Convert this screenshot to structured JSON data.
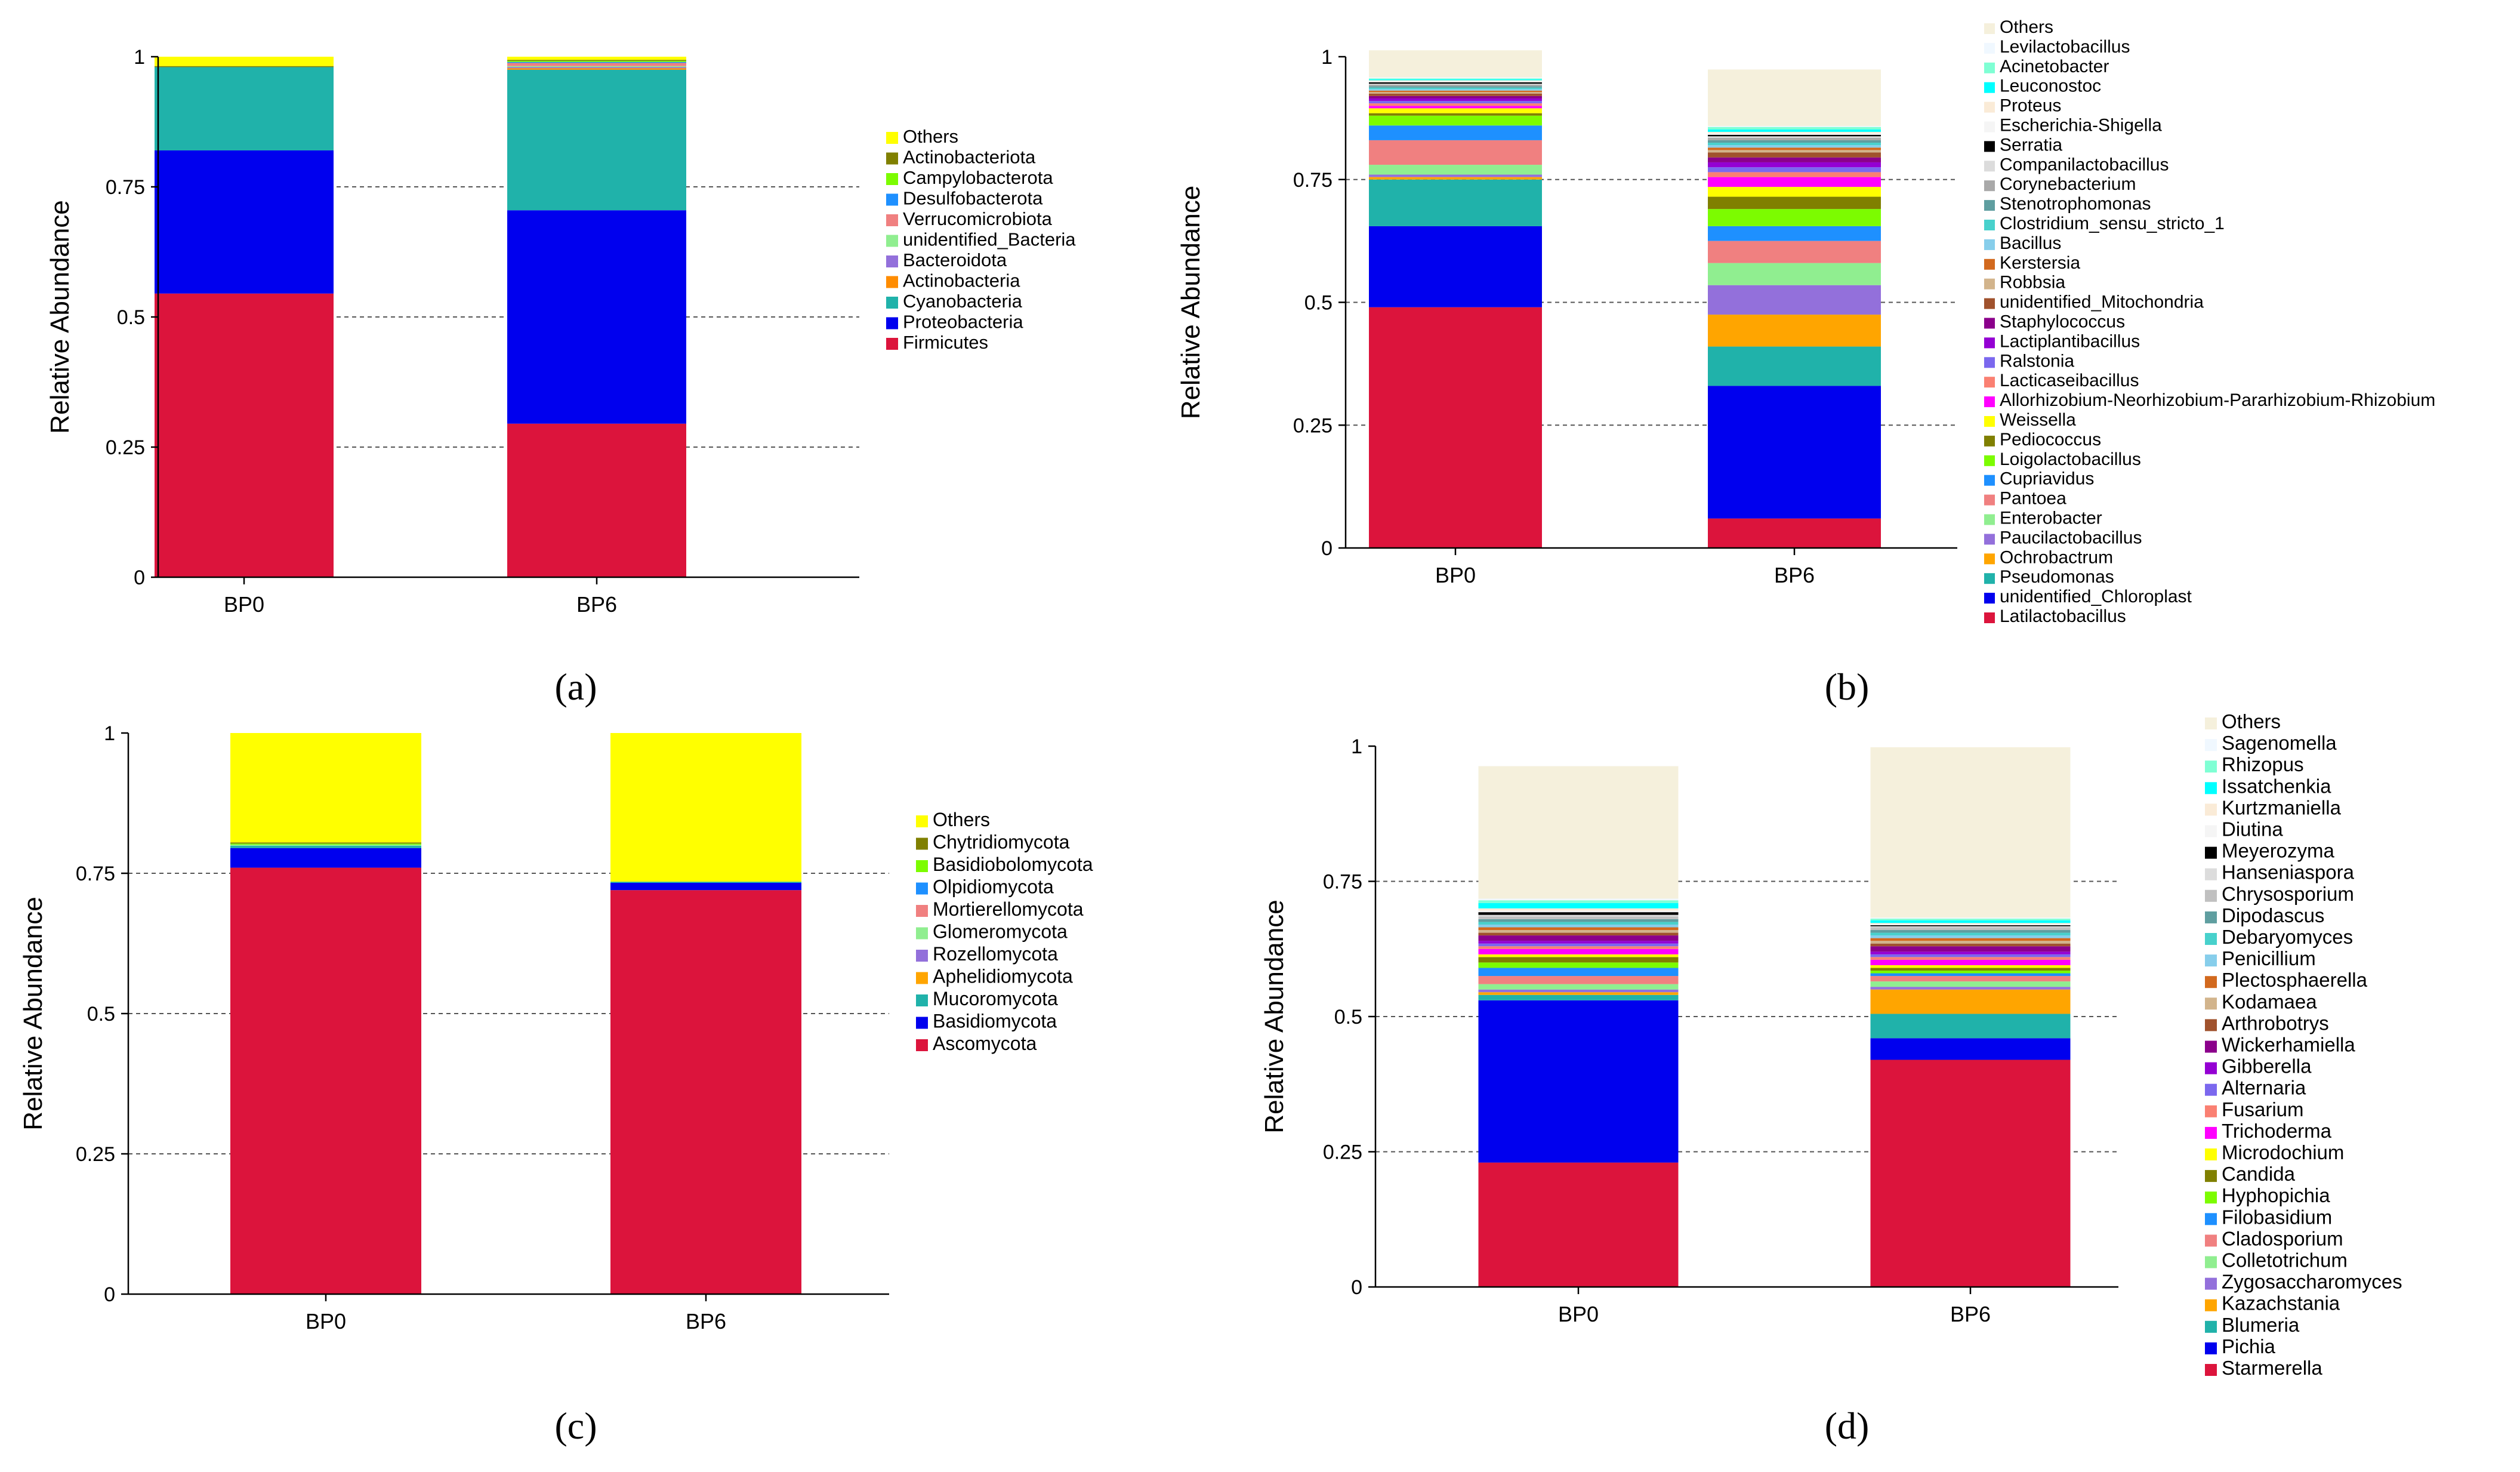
{
  "chart_data": [
    {
      "type": "bar",
      "stacked": true,
      "panel_label": "(a)",
      "categories": [
        "BP0",
        "BP6"
      ],
      "ylabel": "Relative Abundance",
      "ylim": [
        0,
        1
      ],
      "yticks": [
        "0",
        "0.25",
        "0.5",
        "0.75",
        "1"
      ],
      "legend_placement": "right",
      "series": [
        {
          "name": "Firmicutes",
          "color": "#dc143c",
          "values": [
            0.545,
            0.295
          ]
        },
        {
          "name": "Proteobacteria",
          "color": "#0000ee",
          "values": [
            0.275,
            0.41
          ]
        },
        {
          "name": "Cyanobacteria",
          "color": "#20b2aa",
          "values": [
            0.16,
            0.27
          ]
        },
        {
          "name": "Actinobacteria",
          "color": "#ff8c00",
          "values": [
            0,
            0.003
          ]
        },
        {
          "name": "Bacteroidota",
          "color": "#9370db",
          "values": [
            0,
            0.002
          ]
        },
        {
          "name": "unidentified_Bacteria",
          "color": "#90ee90",
          "values": [
            0,
            0.002
          ]
        },
        {
          "name": "Verrucomicrobiota",
          "color": "#f08080",
          "values": [
            0,
            0.006
          ]
        },
        {
          "name": "Desulfobacterota",
          "color": "#1e90ff",
          "values": [
            0,
            0.002
          ]
        },
        {
          "name": "Campylobacterota",
          "color": "#7cfc00",
          "values": [
            0,
            0.002
          ]
        },
        {
          "name": "Actinobacteriota",
          "color": "#808000",
          "values": [
            0.002,
            0.002
          ]
        },
        {
          "name": "Others",
          "color": "#ffff00",
          "values": [
            0.018,
            0.006
          ]
        }
      ]
    },
    {
      "type": "bar",
      "stacked": true,
      "panel_label": "(b)",
      "categories": [
        "BP0",
        "BP6"
      ],
      "ylabel": "Relative Abundance",
      "ylim": [
        0,
        1
      ],
      "yticks": [
        "0",
        "0.25",
        "0.5",
        "0.75",
        "1"
      ],
      "legend_placement": "right",
      "series": [
        {
          "name": "Latilactobacillus",
          "color": "#dc143c",
          "values": [
            0.49,
            0.06
          ]
        },
        {
          "name": "unidentified_Chloroplast",
          "color": "#0000ee",
          "values": [
            0.165,
            0.27
          ]
        },
        {
          "name": "Pseudomonas",
          "color": "#20b2aa",
          "values": [
            0.095,
            0.08
          ]
        },
        {
          "name": "Ochrobactrum",
          "color": "#ffa500",
          "values": [
            0.005,
            0.065
          ]
        },
        {
          "name": "Paucilactobacillus",
          "color": "#9370db",
          "values": [
            0.005,
            0.06
          ]
        },
        {
          "name": "Enterobacter",
          "color": "#90ee90",
          "values": [
            0.02,
            0.045
          ]
        },
        {
          "name": "Pantoea",
          "color": "#f08080",
          "values": [
            0.05,
            0.045
          ]
        },
        {
          "name": "Cupriavidus",
          "color": "#1e90ff",
          "values": [
            0.03,
            0.03
          ]
        },
        {
          "name": "Loigolactobacillus",
          "color": "#7cfc00",
          "values": [
            0.02,
            0.035
          ]
        },
        {
          "name": "Pediococcus",
          "color": "#808000",
          "values": [
            0.005,
            0.025
          ]
        },
        {
          "name": "Weissella",
          "color": "#ffff00",
          "values": [
            0.01,
            0.02
          ]
        },
        {
          "name": "Allorhizobium-Neorhizobium-Pararhizobium-Rhizobium",
          "color": "#ff00ff",
          "values": [
            0.005,
            0.02
          ]
        },
        {
          "name": "Lacticaseibacillus",
          "color": "#fa8072",
          "values": [
            0.005,
            0.01
          ]
        },
        {
          "name": "Ralstonia",
          "color": "#7b68ee",
          "values": [
            0.005,
            0.01
          ]
        },
        {
          "name": "Lactiplantibacillus",
          "color": "#9400d3",
          "values": [
            0.005,
            0.01
          ]
        },
        {
          "name": "Staphylococcus",
          "color": "#8b008b",
          "values": [
            0.005,
            0.01
          ]
        },
        {
          "name": "unidentified_Mitochondria",
          "color": "#a0522d",
          "values": [
            0.005,
            0.01
          ]
        },
        {
          "name": "Robbsia",
          "color": "#d2b48c",
          "values": [
            0.003,
            0.005
          ]
        },
        {
          "name": "Kerstersia",
          "color": "#d2691e",
          "values": [
            0.003,
            0.005
          ]
        },
        {
          "name": "Bacillus",
          "color": "#87ceeb",
          "values": [
            0.003,
            0.005
          ]
        },
        {
          "name": "Clostridium_sensu_stricto_1",
          "color": "#48d1cc",
          "values": [
            0.003,
            0.005
          ]
        },
        {
          "name": "Stenotrophomonas",
          "color": "#5f9ea0",
          "values": [
            0.003,
            0.005
          ]
        },
        {
          "name": "Corynebacterium",
          "color": "#a9a9a9",
          "values": [
            0.003,
            0.005
          ]
        },
        {
          "name": "Companilactobacillus",
          "color": "#dcdcdc",
          "values": [
            0.002,
            0.003
          ]
        },
        {
          "name": "Serratia",
          "color": "#000000",
          "values": [
            0.003,
            0.003
          ]
        },
        {
          "name": "Escherichia-Shigella",
          "color": "#f5f5f5",
          "values": [
            0.002,
            0.003
          ]
        },
        {
          "name": "Proteus",
          "color": "#faebd7",
          "values": [
            0.002,
            0.003
          ]
        },
        {
          "name": "Leuconostoc",
          "color": "#00ffff",
          "values": [
            0.002,
            0.005
          ]
        },
        {
          "name": "Acinetobacter",
          "color": "#7fffd4",
          "values": [
            0.002,
            0.005
          ]
        },
        {
          "name": "Levilactobacillus",
          "color": "#f0f8ff",
          "values": [
            0.002,
            0.002
          ]
        },
        {
          "name": "Others",
          "color": "#f5f0dc",
          "values": [
            0.055,
            0.115
          ]
        }
      ]
    },
    {
      "type": "bar",
      "stacked": true,
      "panel_label": "(c)",
      "categories": [
        "BP0",
        "BP6"
      ],
      "ylabel": "Relative Abundance",
      "ylim": [
        0,
        1
      ],
      "yticks": [
        "0",
        "0.25",
        "0.5",
        "0.75",
        "1"
      ],
      "legend_placement": "right",
      "series": [
        {
          "name": "Ascomycota",
          "color": "#dc143c",
          "values": [
            0.76,
            0.72
          ]
        },
        {
          "name": "Basidiomycota",
          "color": "#0000ee",
          "values": [
            0.035,
            0.013
          ]
        },
        {
          "name": "Mucoromycota",
          "color": "#20b2aa",
          "values": [
            0.004,
            0.002
          ]
        },
        {
          "name": "Aphelidiomycota",
          "color": "#ffa500",
          "values": [
            0,
            0
          ]
        },
        {
          "name": "Rozellomycota",
          "color": "#9370db",
          "values": [
            0,
            0
          ]
        },
        {
          "name": "Glomeromycota",
          "color": "#90ee90",
          "values": [
            0.002,
            0
          ]
        },
        {
          "name": "Mortierellomycota",
          "color": "#f08080",
          "values": [
            0,
            0
          ]
        },
        {
          "name": "Olpidiomycota",
          "color": "#1e90ff",
          "values": [
            0,
            0
          ]
        },
        {
          "name": "Basidiobolomycota",
          "color": "#7cfc00",
          "values": [
            0.002,
            0
          ]
        },
        {
          "name": "Chytridiomycota",
          "color": "#808000",
          "values": [
            0.002,
            0
          ]
        },
        {
          "name": "Others",
          "color": "#ffff00",
          "values": [
            0.195,
            0.265
          ]
        }
      ]
    },
    {
      "type": "bar",
      "stacked": true,
      "panel_label": "(d)",
      "categories": [
        "BP0",
        "BP6"
      ],
      "ylabel": "Relative Abundance",
      "ylim": [
        0,
        1
      ],
      "yticks": [
        "0",
        "0.25",
        "0.5",
        "0.75",
        "1"
      ],
      "legend_placement": "right",
      "series": [
        {
          "name": "Starmerella",
          "color": "#dc143c",
          "values": [
            0.23,
            0.42
          ]
        },
        {
          "name": "Pichia",
          "color": "#0000ee",
          "values": [
            0.3,
            0.04
          ]
        },
        {
          "name": "Blumeria",
          "color": "#20b2aa",
          "values": [
            0.01,
            0.045
          ]
        },
        {
          "name": "Kazachstania",
          "color": "#ffa500",
          "values": [
            0.005,
            0.045
          ]
        },
        {
          "name": "Zygosaccharomyces",
          "color": "#9370db",
          "values": [
            0.005,
            0.005
          ]
        },
        {
          "name": "Colletotrichum",
          "color": "#90ee90",
          "values": [
            0.01,
            0.01
          ]
        },
        {
          "name": "Cladosporium",
          "color": "#f08080",
          "values": [
            0.015,
            0.01
          ]
        },
        {
          "name": "Filobasidium",
          "color": "#1e90ff",
          "values": [
            0.015,
            0.005
          ]
        },
        {
          "name": "Hyphopichia",
          "color": "#7cfc00",
          "values": [
            0.01,
            0.005
          ]
        },
        {
          "name": "Candida",
          "color": "#808000",
          "values": [
            0.01,
            0.005
          ]
        },
        {
          "name": "Microdochium",
          "color": "#ffff00",
          "values": [
            0.005,
            0.005
          ]
        },
        {
          "name": "Trichoderma",
          "color": "#ff00ff",
          "values": [
            0.01,
            0.01
          ]
        },
        {
          "name": "Fusarium",
          "color": "#fa8072",
          "values": [
            0.005,
            0.005
          ]
        },
        {
          "name": "Alternaria",
          "color": "#7b68ee",
          "values": [
            0.005,
            0.005
          ]
        },
        {
          "name": "Gibberella",
          "color": "#9400d3",
          "values": [
            0.005,
            0.005
          ]
        },
        {
          "name": "Wickerhamiella",
          "color": "#8b008b",
          "values": [
            0.01,
            0.01
          ]
        },
        {
          "name": "Arthrobotrys",
          "color": "#a0522d",
          "values": [
            0.005,
            0.005
          ]
        },
        {
          "name": "Kodamaea",
          "color": "#d2b48c",
          "values": [
            0.005,
            0.005
          ]
        },
        {
          "name": "Plectosphaerella",
          "color": "#d2691e",
          "values": [
            0.005,
            0.005
          ]
        },
        {
          "name": "Penicillium",
          "color": "#87ceeb",
          "values": [
            0.005,
            0.005
          ]
        },
        {
          "name": "Debaryomyces",
          "color": "#48d1cc",
          "values": [
            0.005,
            0.005
          ]
        },
        {
          "name": "Dipodascus",
          "color": "#5f9ea0",
          "values": [
            0.005,
            0.005
          ]
        },
        {
          "name": "Chrysosporium",
          "color": "#c0c0c0",
          "values": [
            0.005,
            0.005
          ]
        },
        {
          "name": "Hanseniaspora",
          "color": "#dcdcdc",
          "values": [
            0.003,
            0.002
          ]
        },
        {
          "name": "Meyerozyma",
          "color": "#000000",
          "values": [
            0.005,
            0.002
          ]
        },
        {
          "name": "Diutina",
          "color": "#f5f5f5",
          "values": [
            0.003,
            0.002
          ]
        },
        {
          "name": "Kurtzmaniella",
          "color": "#faebd7",
          "values": [
            0.004,
            0.002
          ]
        },
        {
          "name": "Issatchenkia",
          "color": "#00ffff",
          "values": [
            0.01,
            0.005
          ]
        },
        {
          "name": "Rhizopus",
          "color": "#7fffd4",
          "values": [
            0.005,
            0.003
          ]
        },
        {
          "name": "Sagenomella",
          "color": "#f0f8ff",
          "values": [
            0.003,
            0.002
          ]
        },
        {
          "name": "Others",
          "color": "#f5f0dc",
          "values": [
            0.245,
            0.315
          ]
        }
      ]
    }
  ]
}
